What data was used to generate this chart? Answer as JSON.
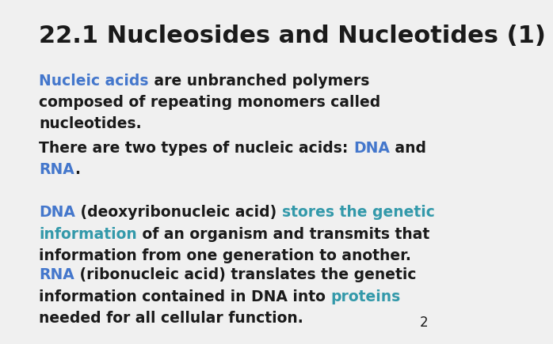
{
  "title": "22.1 Nucleosides and Nucleotides (1)",
  "background_color": "#f0f0f0",
  "black": "#1a1a1a",
  "blue": "#4477CC",
  "teal": "#3399AA",
  "page_number": "2",
  "title_fontsize": 22,
  "body_fontsize": 13.5,
  "page_num_fontsize": 12,
  "paragraphs": [
    {
      "lines": [
        [
          {
            "text": "Nucleic acids",
            "color": "#4477CC",
            "bold": true
          },
          {
            "text": " are unbranched polymers",
            "color": "#1a1a1a",
            "bold": true
          }
        ],
        [
          {
            "text": "composed of repeating monomers called",
            "color": "#1a1a1a",
            "bold": true
          }
        ],
        [
          {
            "text": "nucleotides.",
            "color": "#1a1a1a",
            "bold": true
          }
        ]
      ]
    },
    {
      "lines": [
        [
          {
            "text": "There are two types of nucleic acids: ",
            "color": "#1a1a1a",
            "bold": true
          },
          {
            "text": "DNA",
            "color": "#4477CC",
            "bold": true
          },
          {
            "text": " and",
            "color": "#1a1a1a",
            "bold": true
          }
        ],
        [
          {
            "text": "RNA",
            "color": "#4477CC",
            "bold": true
          },
          {
            "text": ".",
            "color": "#1a1a1a",
            "bold": true
          }
        ]
      ]
    },
    {
      "lines": [
        [
          {
            "text": "DNA",
            "color": "#4477CC",
            "bold": true
          },
          {
            "text": " (deoxyribonucleic acid) ",
            "color": "#1a1a1a",
            "bold": true
          },
          {
            "text": "stores the genetic",
            "color": "#3399AA",
            "bold": true
          }
        ],
        [
          {
            "text": "information",
            "color": "#3399AA",
            "bold": true
          },
          {
            "text": " of an organism and transmits that",
            "color": "#1a1a1a",
            "bold": true
          }
        ],
        [
          {
            "text": "information from one generation to another.",
            "color": "#1a1a1a",
            "bold": true
          }
        ]
      ]
    },
    {
      "lines": [
        [
          {
            "text": "RNA",
            "color": "#4477CC",
            "bold": true
          },
          {
            "text": " (ribonucleic acid) translates the genetic",
            "color": "#1a1a1a",
            "bold": true
          }
        ],
        [
          {
            "text": "information contained in DNA into ",
            "color": "#1a1a1a",
            "bold": true
          },
          {
            "text": "proteins",
            "color": "#3399AA",
            "bold": true
          }
        ],
        [
          {
            "text": "needed for all cellular function.",
            "color": "#1a1a1a",
            "bold": true
          }
        ]
      ]
    }
  ]
}
